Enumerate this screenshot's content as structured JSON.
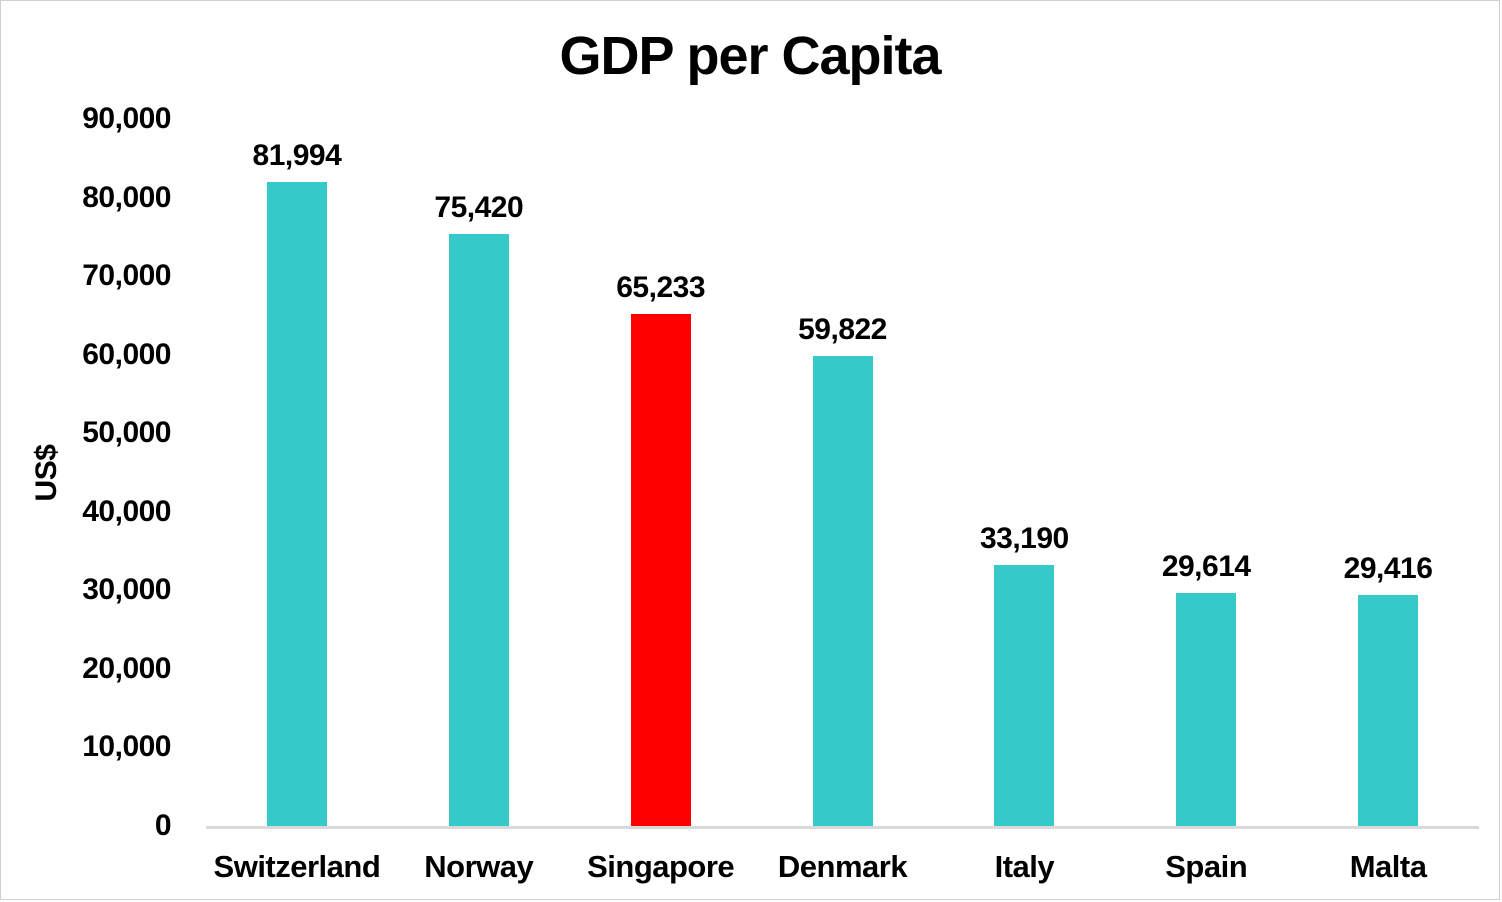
{
  "title": "GDP per Capita",
  "colors": {
    "bar_default": "#36C9C9",
    "bar_highlight": "#FF0000",
    "axis_line": "#D9D9D9",
    "text": "#000000",
    "border": "#D0D0D0",
    "background": "#FFFFFF"
  },
  "chart_data": {
    "type": "bar",
    "title": "GDP per Capita",
    "xlabel": "",
    "ylabel": "US$",
    "categories": [
      "Switzerland",
      "Norway",
      "Singapore",
      "Denmark",
      "Italy",
      "Spain",
      "Malta"
    ],
    "values": [
      81994,
      75420,
      65233,
      59822,
      33190,
      29614,
      29416
    ],
    "value_labels": [
      "81,994",
      "75,420",
      "65,233",
      "59,822",
      "33,190",
      "29,614",
      "29,416"
    ],
    "bar_colors": [
      "#36C9C9",
      "#36C9C9",
      "#FF0000",
      "#36C9C9",
      "#36C9C9",
      "#36C9C9",
      "#36C9C9"
    ],
    "highlighted_category": "Singapore",
    "ylim": [
      0,
      90000
    ],
    "ytick_step": 10000,
    "ytick_labels": [
      "0",
      "10,000",
      "20,000",
      "30,000",
      "40,000",
      "50,000",
      "60,000",
      "70,000",
      "80,000",
      "90,000"
    ],
    "grid": false,
    "legend": "none",
    "data_labels": true
  }
}
